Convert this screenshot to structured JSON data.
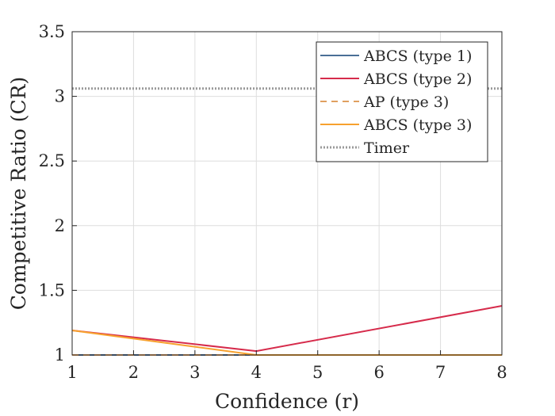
{
  "chart_data": {
    "type": "line",
    "title": "",
    "xlabel": "Confidence (r)",
    "ylabel": "Competitive Ratio (CR)",
    "xlim": [
      1,
      8
    ],
    "ylim": [
      1,
      3.5
    ],
    "xticks": [
      1,
      2,
      3,
      4,
      5,
      6,
      7,
      8
    ],
    "yticks": [
      1,
      1.5,
      2,
      2.5,
      3,
      3.5
    ],
    "xtick_labels": [
      "1",
      "2",
      "3",
      "4",
      "5",
      "6",
      "7",
      "8"
    ],
    "ytick_labels": [
      "1",
      "1.5",
      "2",
      "2.5",
      "3",
      "3.5"
    ],
    "grid": true,
    "legend_position": "top-right",
    "series": [
      {
        "name": "ABCS (type 1)",
        "color": "#4a6f96",
        "style": "solid",
        "x": [
          1,
          4,
          8
        ],
        "y": [
          1.0,
          1.0,
          1.0
        ]
      },
      {
        "name": "ABCS (type 2)",
        "color": "#d62b4b",
        "style": "solid",
        "x": [
          1,
          4,
          8
        ],
        "y": [
          1.19,
          1.03,
          1.38
        ]
      },
      {
        "name": "AP (type 3)",
        "color": "#e0a060",
        "style": "dashed",
        "x": [
          1,
          4,
          8
        ],
        "y": [
          1.0,
          1.0,
          1.0
        ]
      },
      {
        "name": "ABCS (type 3)",
        "color": "#f7a12e",
        "style": "solid",
        "x": [
          1,
          4,
          8
        ],
        "y": [
          1.19,
          1.0,
          1.0
        ]
      },
      {
        "name": "Timer",
        "color": "#9a9a9a",
        "style": "dotted",
        "x": [
          1,
          8
        ],
        "y": [
          3.06,
          3.06
        ]
      }
    ]
  }
}
